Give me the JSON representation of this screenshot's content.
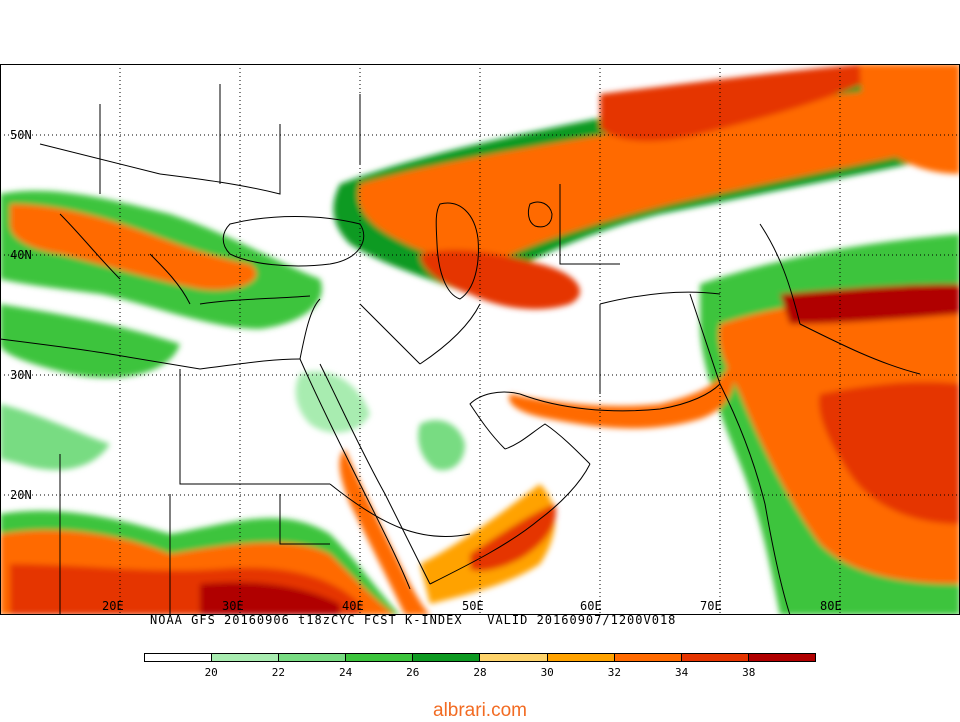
{
  "caption": {
    "model": "NOAA GFS",
    "run": "20160906 t18zCYC FCST K-INDEX",
    "valid": "VALID 20160907/1200V018"
  },
  "map": {
    "lat_labels": [
      "50N",
      "40N",
      "30N",
      "20N"
    ],
    "lon_labels": [
      "20E",
      "30E",
      "40E",
      "50E",
      "60E",
      "70E",
      "80E"
    ]
  },
  "legend": {
    "ticks": [
      "20",
      "22",
      "24",
      "26",
      "28",
      "30",
      "32",
      "34",
      "38"
    ],
    "colors": [
      "#ffffff",
      "#a8ecb0",
      "#78dc82",
      "#3cc43c",
      "#0e9a22",
      "#fed36a",
      "#ffa200",
      "#ff6a00",
      "#e53400",
      "#b00000"
    ]
  },
  "watermark": "albrari.com",
  "watermark_color": "#f26b22"
}
